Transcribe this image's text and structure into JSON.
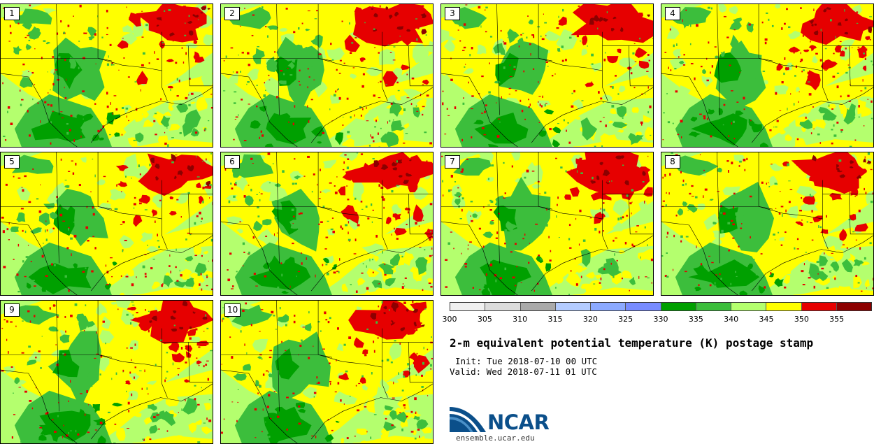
{
  "stamps": [
    {
      "label": "1"
    },
    {
      "label": "2"
    },
    {
      "label": "3"
    },
    {
      "label": "4"
    },
    {
      "label": "5"
    },
    {
      "label": "6"
    },
    {
      "label": "7"
    },
    {
      "label": "8"
    },
    {
      "label": "9"
    },
    {
      "label": "10"
    }
  ],
  "legend": {
    "colors": [
      "#f0f0f0",
      "#dcdcdc",
      "#aaaaaa",
      "#b4ccff",
      "#8caaff",
      "#788cff",
      "#00a000",
      "#3cbe3c",
      "#b4ff6e",
      "#ffff00",
      "#e60000",
      "#8c0000"
    ],
    "ticks": [
      "300",
      "305",
      "310",
      "315",
      "320",
      "325",
      "330",
      "335",
      "340",
      "345",
      "350",
      "355"
    ]
  },
  "title": "2-m equivalent potential temperature (K) postage stamp",
  "init": "Init: Tue 2018-07-10 00 UTC",
  "valid": "Valid: Wed 2018-07-11 01 UTC",
  "logo": {
    "text": "NCAR",
    "url": "ensemble.ucar.edu"
  },
  "map_colors": {
    "dark_green": "#00a000",
    "green": "#3cbe3c",
    "light_green": "#b4ff6e",
    "yellow": "#ffff00",
    "red": "#e60000",
    "dark_red": "#8c0000",
    "border": "#000000"
  }
}
